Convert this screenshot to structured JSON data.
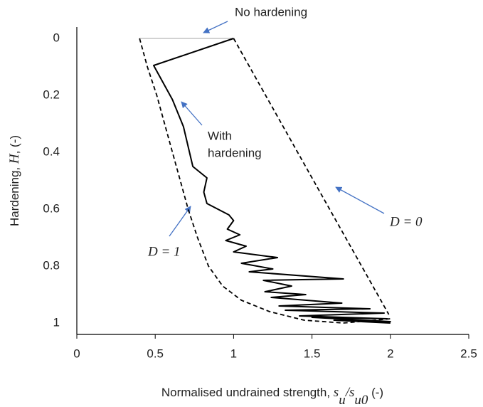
{
  "chart_data": {
    "type": "line",
    "xlabel": [
      "Normalised undrained strength, ",
      "s",
      "u",
      "/",
      "s",
      "u0",
      " (-)"
    ],
    "ylabel": [
      "Hardening, ",
      "H",
      ", (-)"
    ],
    "xlim": [
      0,
      2.5
    ],
    "xticks": [
      0,
      0.5,
      1,
      1.5,
      2,
      2.5
    ],
    "ylim": [
      -0.04,
      1.04
    ],
    "yticks": [
      0,
      0.2,
      0.4,
      0.6,
      0.8,
      1
    ],
    "y_inverted": true,
    "grid": false,
    "series": [
      {
        "color": "#a6a6a6",
        "dash": false,
        "width": 1,
        "x": [
          0.4,
          1.0
        ],
        "values": [
          0,
          0
        ]
      },
      {
        "color": "#000000",
        "dash": false,
        "width": 2,
        "x": [
          1.0,
          0.49,
          0.61,
          0.68,
          0.74,
          0.83,
          0.81,
          0.83,
          0.97,
          1.0,
          0.96,
          1.04,
          0.95,
          1.08,
          1.0,
          1.28,
          1.05,
          1.25,
          1.1,
          1.7,
          1.19,
          1.37,
          1.2,
          1.46,
          1.24,
          1.69,
          1.29,
          1.87,
          1.33,
          1.96,
          1.42,
          1.98,
          1.5,
          2.0,
          1.64,
          2.0
        ],
        "values": [
          0,
          0.095,
          0.215,
          0.31,
          0.45,
          0.49,
          0.54,
          0.58,
          0.62,
          0.64,
          0.67,
          0.69,
          0.71,
          0.73,
          0.75,
          0.77,
          0.79,
          0.81,
          0.82,
          0.845,
          0.85,
          0.87,
          0.89,
          0.9,
          0.91,
          0.93,
          0.94,
          0.95,
          0.955,
          0.965,
          0.975,
          0.985,
          0.98,
          0.995,
          0.99,
          1.0
        ]
      },
      {
        "color": "#000000",
        "dash": true,
        "width": 1.8,
        "x": [
          1.0,
          1.99
        ],
        "values": [
          0,
          0.97
        ]
      },
      {
        "color": "#000000",
        "dash": true,
        "width": 1.8,
        "x": [
          0.4,
          0.45,
          0.51,
          0.56,
          0.61,
          0.66,
          0.71,
          0.77,
          0.84,
          0.93,
          1.05,
          1.23,
          1.45,
          1.7,
          2.0
        ],
        "values": [
          0,
          0.1,
          0.2,
          0.3,
          0.4,
          0.5,
          0.6,
          0.7,
          0.8,
          0.87,
          0.92,
          0.96,
          0.99,
          1.0,
          0.985
        ]
      }
    ],
    "annotations": [
      "No hardening",
      "With",
      "hardening",
      "D = 0",
      "D = 1"
    ]
  }
}
